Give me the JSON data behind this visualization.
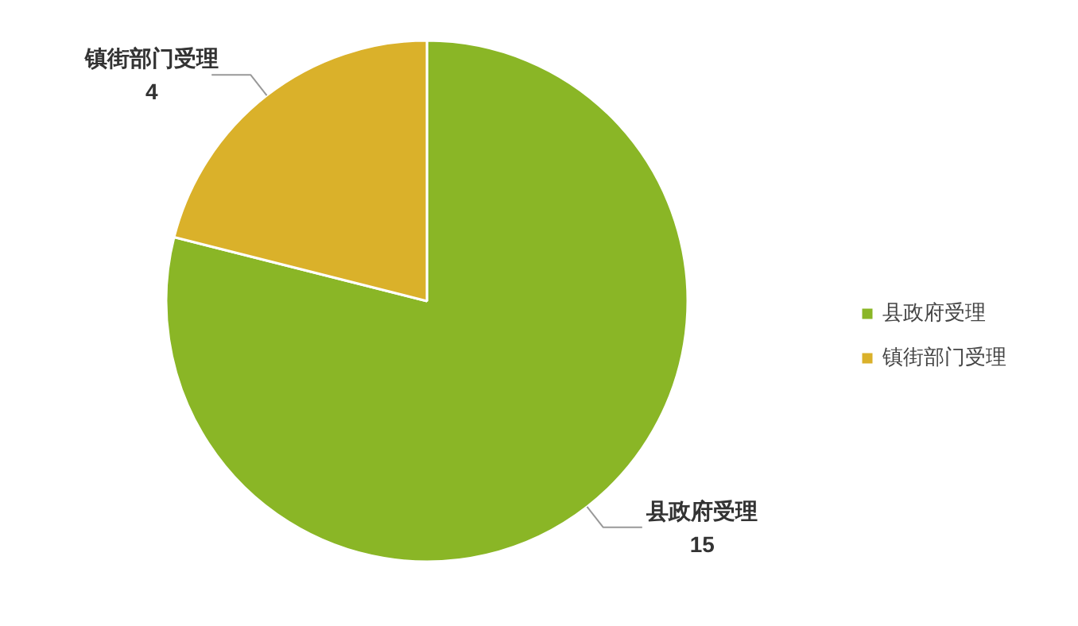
{
  "chart_data": {
    "type": "pie",
    "categories": [
      "县政府受理",
      "镇街部门受理"
    ],
    "values": [
      15,
      4
    ],
    "colors": [
      "#8ab626",
      "#dab12a"
    ],
    "data_labels": true,
    "legend": "right"
  }
}
